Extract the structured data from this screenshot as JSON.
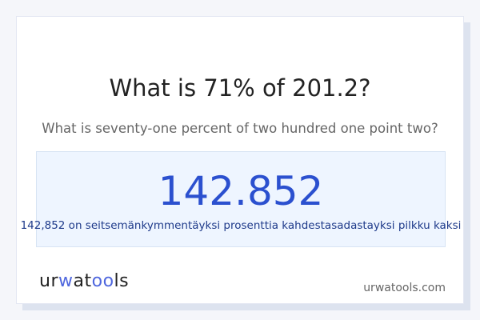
{
  "question": {
    "title": "What is 71% of 201.2?",
    "subtitle": "What is seventy-one percent of two hundred one point two?"
  },
  "answer": {
    "value": "142.852",
    "words": "142,852 on seitsemänkymmentäyksi prosenttia kahdestasadastayksi pilkku kaksi"
  },
  "footer": {
    "logo": "urwatools",
    "logo_parts": [
      "ur",
      "w",
      "at",
      "oo",
      "ls"
    ],
    "site": "urwatools.com"
  },
  "colors": {
    "accent": "#2b50cf",
    "logo_accent": "#4f67de"
  }
}
